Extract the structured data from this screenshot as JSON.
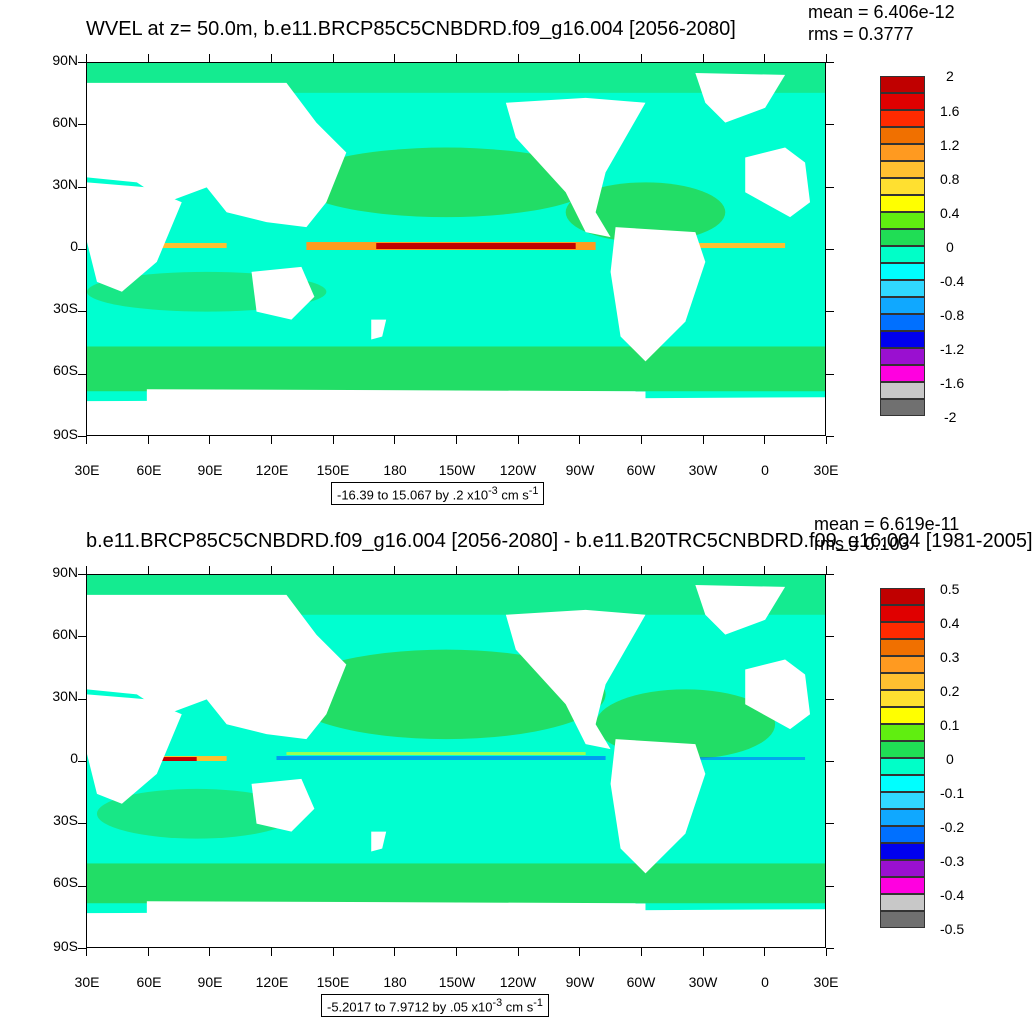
{
  "panel1": {
    "title": "WVEL at z=  50.0m, b.e11.BRCP85C5CNBDRD.f09_g16.004 [2056-2080]",
    "mean": "mean = 6.406e-12",
    "rms": "rms = 0.3777",
    "range_text": "-16.39 to 15.067 by .2 x10",
    "range_exp": "-3",
    "range_unit": " cm s",
    "range_unit_exp": "-1",
    "colorbar_labels": [
      "2",
      "1.6",
      "1.2",
      "0.8",
      "0.4",
      "0",
      "-0.4",
      "-0.8",
      "-1.2",
      "-1.6",
      "-2"
    ]
  },
  "panel2": {
    "title": "b.e11.BRCP85C5CNBDRD.f09_g16.004 [2056-2080] - b.e11.B20TRC5CNBDRD.f09_g16.004 [1981-2005]",
    "mean": "mean = 6.619e-11",
    "rms": "rms = 0.103",
    "range_text": "-5.2017 to 7.9712 by .05 x10",
    "range_exp": "-3",
    "range_unit": " cm s",
    "range_unit_exp": "-1",
    "colorbar_labels": [
      "0.5",
      "0.4",
      "0.3",
      "0.2",
      "0.1",
      "0",
      "-0.1",
      "-0.2",
      "-0.3",
      "-0.4",
      "-0.5"
    ]
  },
  "lat_labels": [
    "90N",
    "60N",
    "30N",
    "0",
    "30S",
    "60S",
    "90S"
  ],
  "lon_labels": [
    "30E",
    "60E",
    "90E",
    "120E",
    "150E",
    "180",
    "150W",
    "120W",
    "90W",
    "60W",
    "30W",
    "0",
    "30E"
  ],
  "colors": {
    "ocean_base": "#00ffd0",
    "ocean_green": "#22dd66",
    "land": "#ffffff",
    "colorbar": [
      "#c00000",
      "#e00000",
      "#ff2a00",
      "#f07000",
      "#ff9a20",
      "#ffc030",
      "#ffe030",
      "#ffff00",
      "#60ee10",
      "#20dd55",
      "#00ffc8",
      "#00ffff",
      "#30d8ff",
      "#10a8ff",
      "#0070ff",
      "#0000ee",
      "#9a10d0",
      "#ff00e0",
      "#c8c8c8",
      "#707070"
    ]
  }
}
